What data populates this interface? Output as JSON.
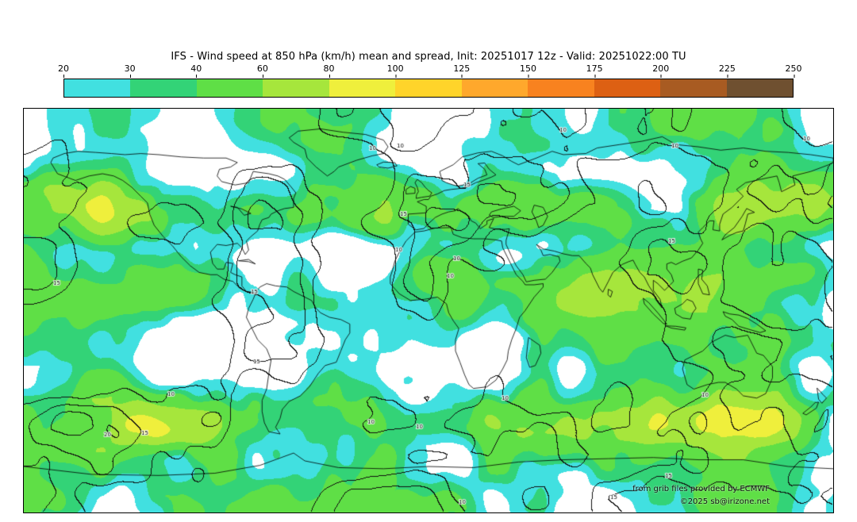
{
  "header": {
    "title": "IFS - Wind speed at 850 hPa (km/h) mean and spread, Init: 20251017 12z - Valid: 20251022:00 TU"
  },
  "colorbar": {
    "tick_labels": [
      "20",
      "30",
      "40",
      "60",
      "80",
      "100",
      "125",
      "150",
      "175",
      "200",
      "225",
      "250"
    ]
  },
  "map": {
    "attribution_line1": "from grib files provided by ECMWF",
    "attribution_line2": "©2025 sb@irizone.net"
  },
  "chart_data": {
    "type": "heatmap",
    "title": "IFS - Wind speed at 850 hPa (km/h) mean and spread, Init: 20251017 12z - Valid: 20251022:00 TU",
    "model": "IFS",
    "variable": "Wind speed at 850 hPa",
    "units": "km/h",
    "statistic": "ensemble mean (shaded) and spread (black contours)",
    "init_time": "20251017 12z",
    "valid_time": "20251022:00 TU",
    "projection": "equirectangular",
    "lon_range": [
      -180,
      180
    ],
    "lat_range": [
      -90,
      90
    ],
    "colorbar_ticks": [
      20,
      30,
      40,
      60,
      80,
      100,
      125,
      150,
      175,
      200,
      225,
      250
    ],
    "colorbar_colors": [
      "#41E0E0",
      "#33D377",
      "#5FDF46",
      "#A6E63C",
      "#EFEF3C",
      "#FFD42A",
      "#FFA82C",
      "#F8821F",
      "#DD6013",
      "#A85B22",
      "#6F5030"
    ],
    "below_min_color": "#FFFFFF",
    "spread_contour_levels_kmh": [
      10,
      15,
      20
    ],
    "legend_position": "top",
    "notes": "Shaded field is ensemble-mean 850 hPa wind speed over a world map; thin black contours show ensemble spread labeled 10/15/20 km/h; coastlines overlaid in black; white where mean < 20 km/h."
  }
}
